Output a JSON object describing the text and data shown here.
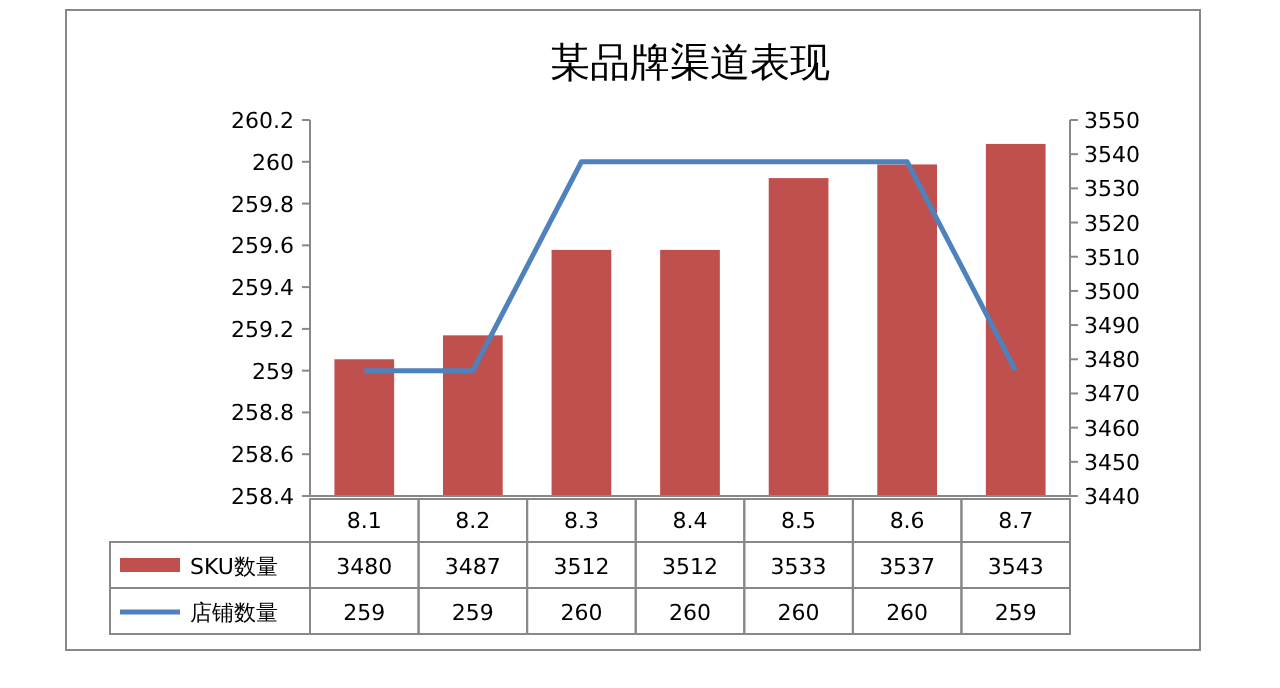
{
  "chart_data": {
    "type": "bar",
    "title": "某品牌渠道表现",
    "categories": [
      "8.1",
      "8.2",
      "8.3",
      "8.4",
      "8.5",
      "8.6",
      "8.7"
    ],
    "series": [
      {
        "name": "SKU数量",
        "axis": "y2",
        "color": "#c0504d",
        "values": [
          3480,
          3487,
          3512,
          3512,
          3533,
          3537,
          3543
        ]
      },
      {
        "name": "店铺数量",
        "type": "line",
        "axis": "y",
        "color": "#4f81bd",
        "values": [
          259,
          259,
          260,
          260,
          260,
          260,
          259
        ]
      }
    ],
    "ylim": [
      258.4,
      260.2
    ],
    "yticks": [
      258.4,
      258.6,
      258.8,
      259,
      259.2,
      259.4,
      259.6,
      259.8,
      260,
      260.2
    ],
    "y2lim": [
      3440,
      3550
    ],
    "y2ticks": [
      3440,
      3450,
      3460,
      3470,
      3480,
      3490,
      3500,
      3510,
      3520,
      3530,
      3540,
      3550
    ],
    "data_labels": true,
    "legend": "bottom",
    "grid": false,
    "marker": "none"
  }
}
